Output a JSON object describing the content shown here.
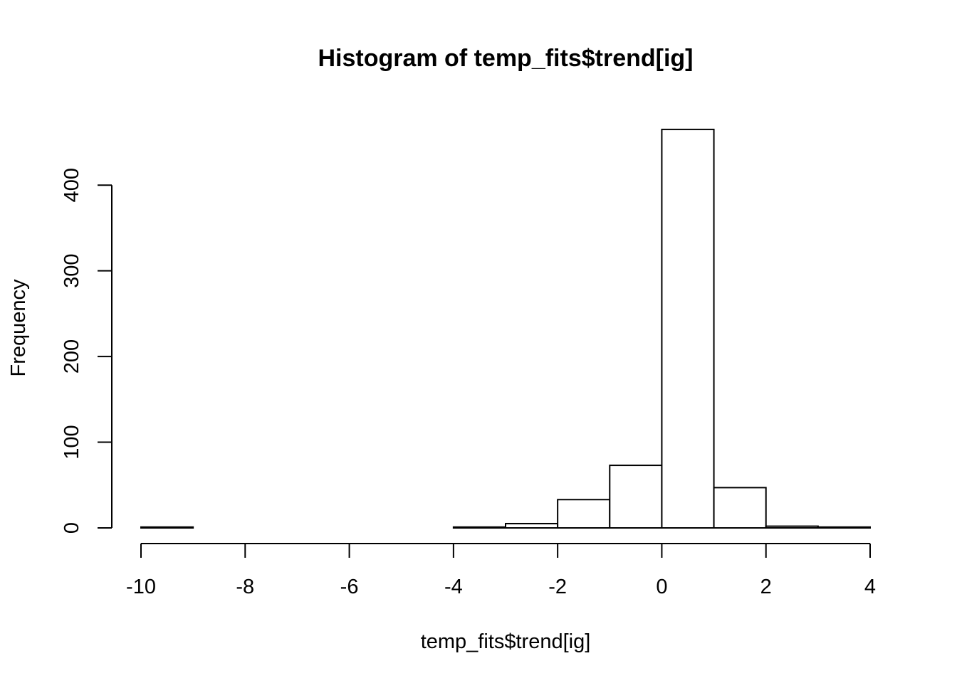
{
  "chart_data": {
    "type": "bar",
    "title": "Histogram of temp_fits$trend[ig]",
    "xlabel": "temp_fits$trend[ig]",
    "ylabel": "Frequency",
    "bins": [
      {
        "x0": -10,
        "x1": -9,
        "count": 1
      },
      {
        "x0": -9,
        "x1": -8,
        "count": 0
      },
      {
        "x0": -8,
        "x1": -7,
        "count": 0
      },
      {
        "x0": -7,
        "x1": -6,
        "count": 0
      },
      {
        "x0": -6,
        "x1": -5,
        "count": 0
      },
      {
        "x0": -5,
        "x1": -4,
        "count": 0
      },
      {
        "x0": -4,
        "x1": -3,
        "count": 1
      },
      {
        "x0": -3,
        "x1": -2,
        "count": 5
      },
      {
        "x0": -2,
        "x1": -1,
        "count": 33
      },
      {
        "x0": -1,
        "x1": 0,
        "count": 73
      },
      {
        "x0": 0,
        "x1": 1,
        "count": 465
      },
      {
        "x0": 1,
        "x1": 2,
        "count": 47
      },
      {
        "x0": 2,
        "x1": 3,
        "count": 2
      },
      {
        "x0": 3,
        "x1": 4,
        "count": 1
      }
    ],
    "xlim": [
      -10,
      4
    ],
    "ylim": [
      0,
      465
    ],
    "x_ticks": [
      -10,
      -8,
      -6,
      -4,
      -2,
      0,
      2,
      4
    ],
    "x_tick_labels": [
      "-10",
      "-8",
      "-6",
      "-4",
      "-2",
      "0",
      "2",
      "4"
    ],
    "y_ticks": [
      0,
      100,
      200,
      300,
      400
    ],
    "y_tick_labels": [
      "0",
      "100",
      "200",
      "300",
      "400"
    ],
    "grid": false,
    "bar_fill": "#ffffff",
    "bar_stroke": "#000000"
  }
}
